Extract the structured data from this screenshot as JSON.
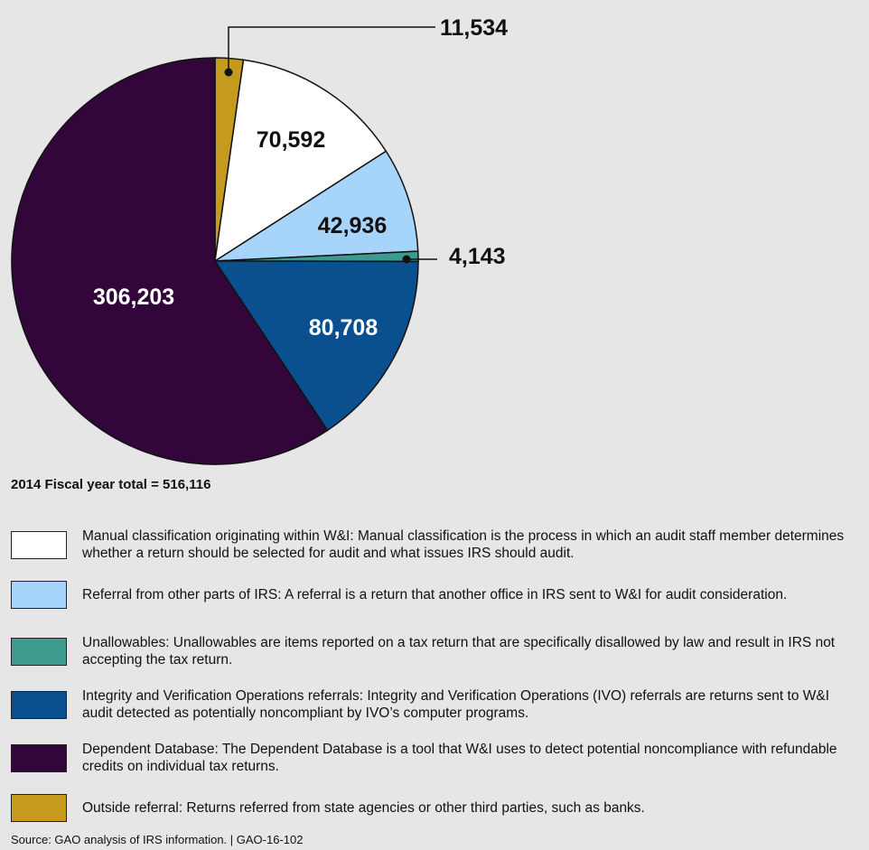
{
  "chart_data": {
    "type": "pie",
    "total_label": "2014 Fiscal year total = 516,116",
    "slices": [
      {
        "value": 11534,
        "label": "11,534",
        "color": "#c49a1f",
        "legend": "Outside referral: Returns referred from state agencies or other third parties, such as banks."
      },
      {
        "value": 70592,
        "label": "70,592",
        "color": "#ffffff",
        "legend": "Manual classification originating within W&I: Manual classification is the process in which an audit staff member determines whether a return should be selected for audit and what issues IRS should audit."
      },
      {
        "value": 42936,
        "label": "42,936",
        "color": "#a6d4fa",
        "legend": "Referral from other parts of IRS: A referral is a return that another office in IRS sent to W&I for audit consideration."
      },
      {
        "value": 4143,
        "label": "4,143",
        "color": "#3d9a8e",
        "legend": "Unallowables: Unallowables are items reported on a tax return that are specifically disallowed by law and result in IRS not accepting the tax return."
      },
      {
        "value": 80708,
        "label": "80,708",
        "color": "#0a4f8e",
        "legend": "Integrity and Verification Operations referrals: Integrity and Verification Operations (IVO) referrals are returns sent to W&I audit detected as potentially noncompliant by IVO’s computer programs."
      },
      {
        "value": 306203,
        "label": "306,203",
        "color": "#32063a",
        "legend": "Dependent Database: The Dependent Database is a tool that W&I uses to detect potential noncompliance with refundable credits on individual tax returns."
      }
    ],
    "legend_order": [
      1,
      2,
      3,
      4,
      5,
      0
    ]
  },
  "source": "Source: GAO analysis of IRS information.  |  GAO-16-102"
}
